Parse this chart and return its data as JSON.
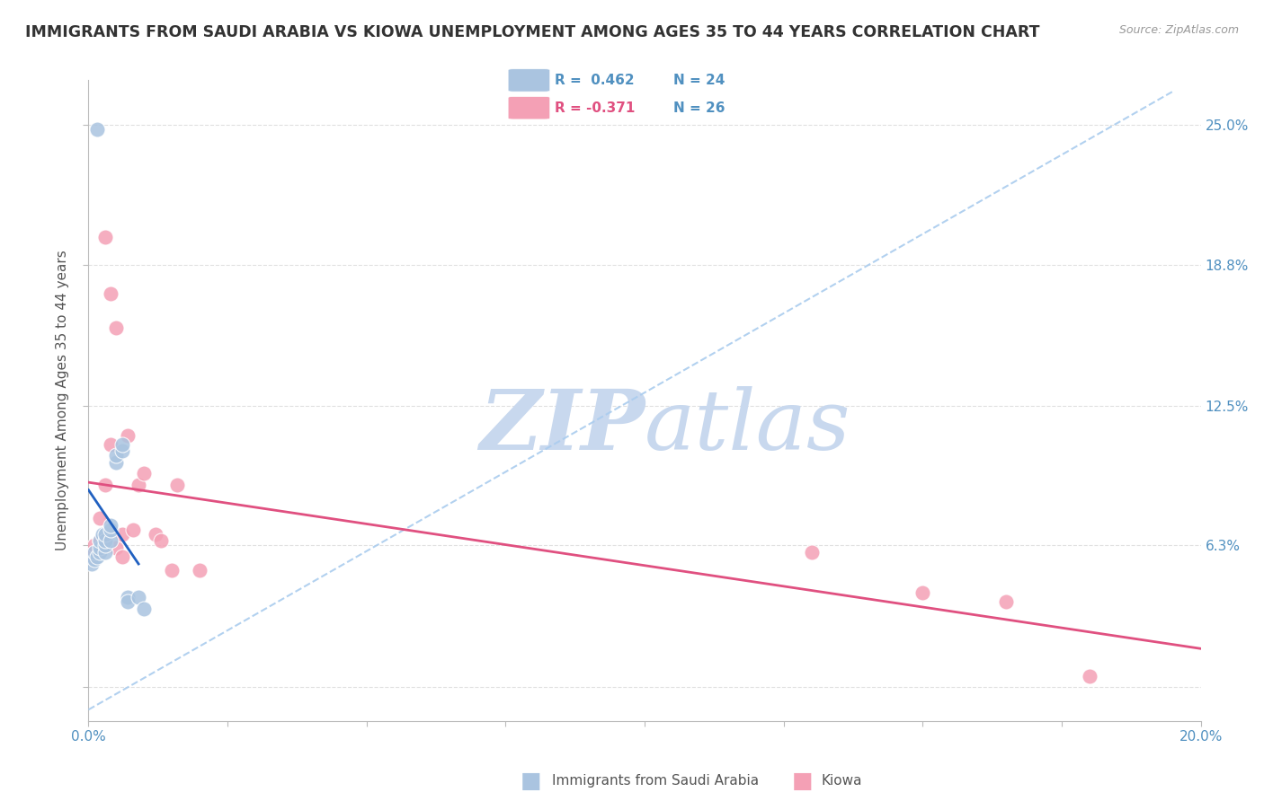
{
  "title": "IMMIGRANTS FROM SAUDI ARABIA VS KIOWA UNEMPLOYMENT AMONG AGES 35 TO 44 YEARS CORRELATION CHART",
  "source": "Source: ZipAtlas.com",
  "ylabel": "Unemployment Among Ages 35 to 44 years",
  "xlim": [
    0.0,
    0.2
  ],
  "ylim": [
    -0.015,
    0.27
  ],
  "yticks": [
    0.0,
    0.063,
    0.125,
    0.188,
    0.25
  ],
  "ytick_labels_right": [
    "",
    "6.3%",
    "12.5%",
    "18.8%",
    "25.0%"
  ],
  "xticks": [
    0.0,
    0.025,
    0.05,
    0.075,
    0.1,
    0.125,
    0.15,
    0.175,
    0.2
  ],
  "xtick_labels": [
    "0.0%",
    "",
    "",
    "",
    "",
    "",
    "",
    "",
    "20.0%"
  ],
  "R_blue": 0.462,
  "N_blue": 24,
  "R_pink": -0.371,
  "N_pink": 26,
  "blue_scatter_x": [
    0.0005,
    0.001,
    0.001,
    0.0015,
    0.002,
    0.002,
    0.002,
    0.0025,
    0.003,
    0.003,
    0.003,
    0.003,
    0.004,
    0.004,
    0.004,
    0.005,
    0.005,
    0.006,
    0.006,
    0.007,
    0.007,
    0.009,
    0.01,
    0.0015
  ],
  "blue_scatter_y": [
    0.055,
    0.057,
    0.06,
    0.058,
    0.06,
    0.062,
    0.065,
    0.068,
    0.06,
    0.063,
    0.065,
    0.068,
    0.065,
    0.07,
    0.072,
    0.1,
    0.103,
    0.105,
    0.108,
    0.04,
    0.038,
    0.04,
    0.035,
    0.248
  ],
  "pink_scatter_x": [
    0.0005,
    0.001,
    0.001,
    0.002,
    0.002,
    0.003,
    0.003,
    0.004,
    0.004,
    0.005,
    0.005,
    0.006,
    0.006,
    0.007,
    0.008,
    0.009,
    0.01,
    0.012,
    0.013,
    0.015,
    0.016,
    0.02,
    0.13,
    0.15,
    0.165,
    0.18
  ],
  "pink_scatter_y": [
    0.058,
    0.06,
    0.063,
    0.065,
    0.075,
    0.09,
    0.2,
    0.108,
    0.175,
    0.062,
    0.16,
    0.058,
    0.068,
    0.112,
    0.07,
    0.09,
    0.095,
    0.068,
    0.065,
    0.052,
    0.09,
    0.052,
    0.06,
    0.042,
    0.038,
    0.005
  ],
  "background_color": "#ffffff",
  "blue_color": "#aac4e0",
  "pink_color": "#f4a0b5",
  "blue_line_color": "#2060c0",
  "pink_line_color": "#e05080",
  "dash_line_color": "#aaccee",
  "grid_color": "#e0e0e0",
  "watermark_zip_color": "#c8d8ee",
  "watermark_atlas_color": "#c8d8ee",
  "title_color": "#333333",
  "axis_label_color": "#555555",
  "tick_color": "#5090c0",
  "legend_border_color": "#cccccc"
}
